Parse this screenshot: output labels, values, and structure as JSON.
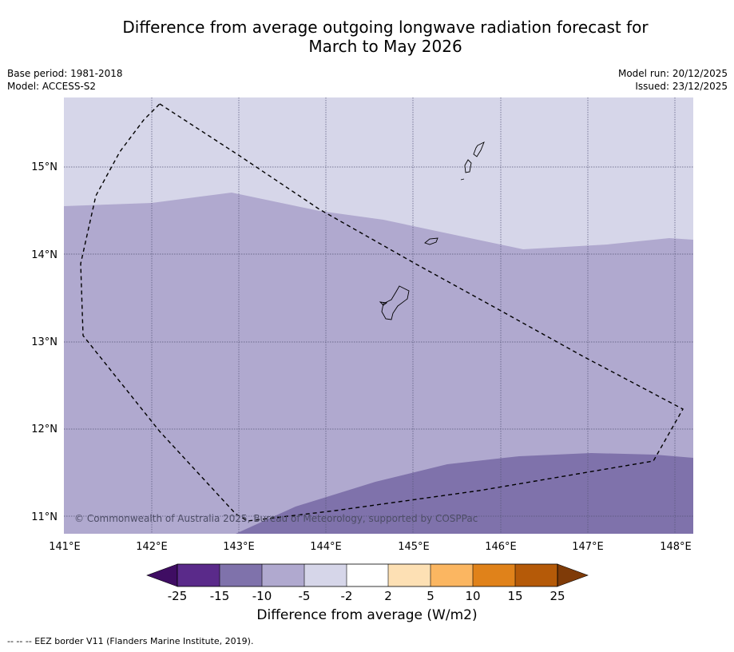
{
  "title": {
    "line1": "Difference from average outgoing longwave radiation forecast for",
    "line2": "March to May 2026"
  },
  "metadata": {
    "base_period": "Base period: 1981-2018",
    "model": "Model: ACCESS-S2",
    "model_run": "Model run: 20/12/2025",
    "issued": "Issued: 23/12/2025"
  },
  "map": {
    "lon_ticks": [
      "141°E",
      "142°E",
      "143°E",
      "144°E",
      "145°E",
      "146°E",
      "147°E",
      "148°E"
    ],
    "lat_ticks": [
      "15°N",
      "14°N",
      "13°N",
      "12°N",
      "11°N"
    ],
    "extent": {
      "lon_min": 140.99,
      "lon_max": 148.2,
      "lat_min": 10.8,
      "lat_max": 15.8
    },
    "copyright": "© Commonwealth of Australia 2025, Bureau of Meteorology, supported by COSPPac",
    "colors": {
      "cat_minus5_minus2": "#d6d6e9",
      "cat_minus10_minus5": "#b0a9cf",
      "cat_minus15_minus10": "#7f72ab"
    }
  },
  "colorbar": {
    "labels": [
      "-25",
      "-15",
      "-10",
      "-5",
      "-2",
      "2",
      "5",
      "10",
      "15",
      "25"
    ],
    "colors": [
      "#3f0d63",
      "#5a2a8a",
      "#7f72ab",
      "#b0a9cf",
      "#d6d6e9",
      "#ffffff",
      "#fde0b4",
      "#fbb661",
      "#e0821a",
      "#b55a08",
      "#7f3b08"
    ],
    "title": "Difference from average (W/m2)"
  },
  "footer": "--  --  -- EEZ border V11 (Flanders Marine Institute, 2019)."
}
